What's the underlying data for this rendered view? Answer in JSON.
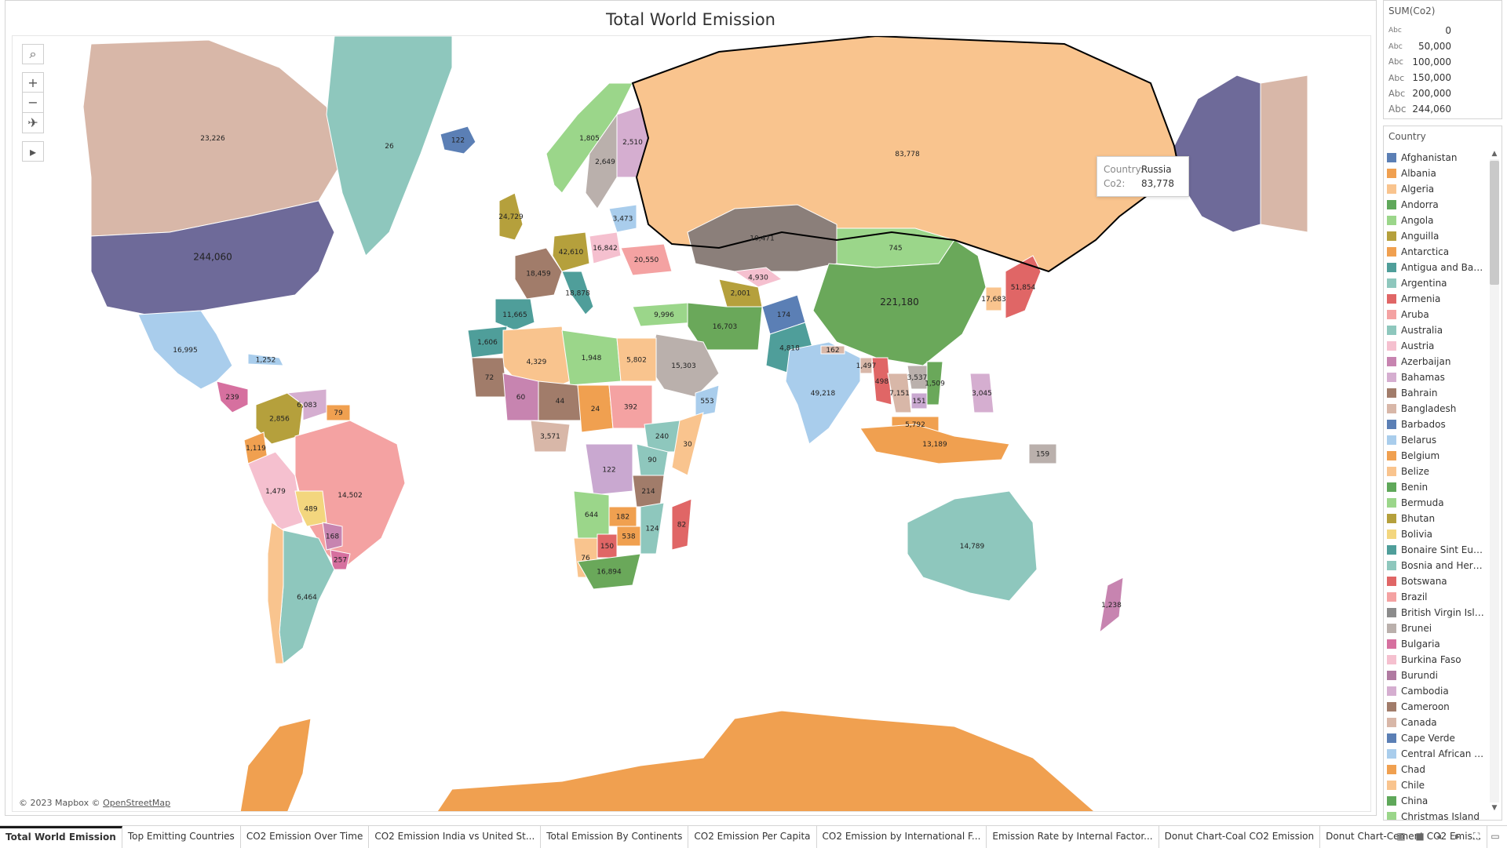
{
  "title": "Total World Emission",
  "attribution": {
    "mapbox": "© 2023 Mapbox ©",
    "osm": "OpenStreetMap"
  },
  "map_tools": {
    "search": "⌕",
    "zoom_in": "+",
    "zoom_out": "−",
    "pin": "✈",
    "play": "▸"
  },
  "tooltip": {
    "country_label": "Country:",
    "country_value": "Russia",
    "co2_label": "Co2:",
    "co2_value": "83,778"
  },
  "size_legend": {
    "title": "SUM(Co2)",
    "items": [
      {
        "abc": "Abc",
        "value": "0"
      },
      {
        "abc": "Abc",
        "value": "50,000"
      },
      {
        "abc": "Abc",
        "value": "100,000"
      },
      {
        "abc": "Abc",
        "value": "150,000"
      },
      {
        "abc": "Abc",
        "value": "200,000"
      },
      {
        "abc": "Abc",
        "value": "244,060"
      }
    ]
  },
  "color_legend": {
    "title": "Country",
    "items": [
      {
        "name": "Afghanistan",
        "color": "#5b7fb5"
      },
      {
        "name": "Albania",
        "color": "#f0a050"
      },
      {
        "name": "Algeria",
        "color": "#f9c48e"
      },
      {
        "name": "Andorra",
        "color": "#5fa85a"
      },
      {
        "name": "Angola",
        "color": "#9bd68a"
      },
      {
        "name": "Anguilla",
        "color": "#b5a03c"
      },
      {
        "name": "Antarctica",
        "color": "#f0a050"
      },
      {
        "name": "Antigua and Barb..",
        "color": "#4f9e9a"
      },
      {
        "name": "Argentina",
        "color": "#8ec7bd"
      },
      {
        "name": "Armenia",
        "color": "#e06666"
      },
      {
        "name": "Aruba",
        "color": "#f4a2a2"
      },
      {
        "name": "Australia",
        "color": "#8ec7bd"
      },
      {
        "name": "Austria",
        "color": "#f5c0cf"
      },
      {
        "name": "Azerbaijan",
        "color": "#c784b0"
      },
      {
        "name": "Bahamas",
        "color": "#d5aed0"
      },
      {
        "name": "Bahrain",
        "color": "#a17c6a"
      },
      {
        "name": "Bangladesh",
        "color": "#d8b7a8"
      },
      {
        "name": "Barbados",
        "color": "#5b7fb5"
      },
      {
        "name": "Belarus",
        "color": "#a9cdec"
      },
      {
        "name": "Belgium",
        "color": "#f0a050"
      },
      {
        "name": "Belize",
        "color": "#f9c48e"
      },
      {
        "name": "Benin",
        "color": "#5fa85a"
      },
      {
        "name": "Bermuda",
        "color": "#9bd68a"
      },
      {
        "name": "Bhutan",
        "color": "#b5a03c"
      },
      {
        "name": "Bolivia",
        "color": "#f3d67e"
      },
      {
        "name": "Bonaire Sint Eust..",
        "color": "#4f9e9a"
      },
      {
        "name": "Bosnia and Herze..",
        "color": "#8ec7bd"
      },
      {
        "name": "Botswana",
        "color": "#e06666"
      },
      {
        "name": "Brazil",
        "color": "#f4a2a2"
      },
      {
        "name": "British Virgin Isla..",
        "color": "#8b8b8b"
      },
      {
        "name": "Brunei",
        "color": "#bab0ac"
      },
      {
        "name": "Bulgaria",
        "color": "#d6709f"
      },
      {
        "name": "Burkina Faso",
        "color": "#f5c0cf"
      },
      {
        "name": "Burundi",
        "color": "#b07aa1"
      },
      {
        "name": "Cambodia",
        "color": "#d5aed0"
      },
      {
        "name": "Cameroon",
        "color": "#a17c6a"
      },
      {
        "name": "Canada",
        "color": "#d8b7a8"
      },
      {
        "name": "Cape Verde",
        "color": "#5b7fb5"
      },
      {
        "name": "Central African R..",
        "color": "#a9cdec"
      },
      {
        "name": "Chad",
        "color": "#f0a050"
      },
      {
        "name": "Chile",
        "color": "#f9c48e"
      },
      {
        "name": "China",
        "color": "#5fa85a"
      },
      {
        "name": "Christmas Island",
        "color": "#9bd68a"
      }
    ]
  },
  "regions": {
    "canada": {
      "label": "23,226",
      "color": "#d8b7a8"
    },
    "usa": {
      "label": "244,060",
      "color": "#6e6a99"
    },
    "alaska": {
      "color": "#6e6a99"
    },
    "greenland": {
      "label": "26",
      "color": "#8ec7bd"
    },
    "iceland": {
      "label": "122",
      "color": "#5b7fb5"
    },
    "mexico": {
      "label": "16,995",
      "color": "#a9cdec"
    },
    "russia": {
      "label": "83,778",
      "color": "#f9c48e"
    },
    "china": {
      "label": "221,180",
      "color": "#6aa85a"
    },
    "mongolia": {
      "label": "745",
      "color": "#9bd68a"
    },
    "kazakhstan": {
      "label": "10,471",
      "color": "#8b7f7a"
    },
    "india": {
      "label": "49,218",
      "color": "#a9cdec"
    },
    "brazil": {
      "label": "14,502",
      "color": "#f4a2a2"
    },
    "argentina": {
      "label": "6,464",
      "color": "#8ec7bd"
    },
    "chile": {
      "color": "#f9c48e"
    },
    "peru": {
      "label": "1,479",
      "color": "#f5c0cf"
    },
    "colombia": {
      "label": "2,856",
      "color": "#b5a03c"
    },
    "venezuela": {
      "label": "6,083",
      "color": "#d5aed0"
    },
    "bolivia": {
      "label": "489",
      "color": "#f3d67e"
    },
    "australia": {
      "label": "14,789",
      "color": "#8ec7bd"
    },
    "antarctica": {
      "color": "#f0a050"
    },
    "greenland_south": {
      "color": "#8ec7bd"
    },
    "algeria": {
      "label": "4,329",
      "color": "#f9c48e"
    },
    "libya": {
      "label": "1,948",
      "color": "#9bd68a"
    },
    "egypt": {
      "label": "5,802",
      "color": "#f9c48e"
    },
    "sudan": {
      "label": "392",
      "color": "#f4a2a2"
    },
    "chad": {
      "label": "24",
      "color": "#f0a050"
    },
    "niger": {
      "label": "44",
      "color": "#a17c6a"
    },
    "mali": {
      "label": "60",
      "color": "#c784b0"
    },
    "drc": {
      "label": "122",
      "color": "#c9a8d0"
    },
    "angola": {
      "label": "644",
      "color": "#9bd68a"
    },
    "south_africa": {
      "label": "16,894",
      "color": "#6aa85a"
    },
    "madagascar": {
      "label": "82",
      "color": "#e06666"
    },
    "saudi": {
      "label": "15,303",
      "color": "#bab0ac"
    },
    "iran": {
      "label": "16,703",
      "color": "#6aa85a"
    },
    "turkey": {
      "label": "9,996",
      "color": "#9bd68a"
    },
    "france": {
      "label": "18,459",
      "color": "#a17c6a"
    },
    "spain": {
      "label": "11,665",
      "color": "#4f9e9a"
    },
    "germany": {
      "label": "42,610",
      "color": "#b5a03c"
    },
    "uk": {
      "label": "24,729",
      "color": "#b5a03c"
    },
    "poland": {
      "label": "16,842",
      "color": "#f5c0cf"
    },
    "ukraine": {
      "label": "20,550",
      "color": "#f4a2a2"
    },
    "sweden": {
      "label": "2,649",
      "color": "#bab0ac"
    },
    "finland": {
      "label": "2,510",
      "color": "#d5aed0"
    },
    "norway": {
      "label": "1,805",
      "color": "#9bd68a"
    },
    "japan": {
      "label": "51,854",
      "color": "#e06666"
    },
    "korea": {
      "label": "17,683",
      "color": "#f9c48e"
    },
    "indonesia": {
      "label": "13,189",
      "color": "#f0a050"
    },
    "thailand": {
      "label": "7,151",
      "color": "#d8b7a8"
    },
    "myanmar": {
      "label": "498",
      "color": "#e06666"
    },
    "pakistan": {
      "label": "4,818",
      "color": "#4f9e9a"
    },
    "afghanistan": {
      "label": "174",
      "color": "#5b7fb5"
    },
    "new_zealand": {
      "label": "1,238",
      "color": "#c784b0"
    },
    "philippines": {
      "label": "3,045",
      "color": "#d5aed0"
    },
    "png": {
      "label": "159",
      "color": "#bab0ac"
    },
    "malaysia": {
      "label": "5,792",
      "color": "#f0a050"
    },
    "ethiopia": {
      "label": "240",
      "color": "#8ec7bd"
    },
    "kenya": {
      "label": "90",
      "color": "#8ec7bd"
    },
    "tanzania": {
      "label": "214",
      "color": "#a17c6a"
    },
    "nigeria": {
      "label": "3,571",
      "color": "#d8b7a8"
    },
    "namibia": {
      "label": "76",
      "color": "#f9c48e"
    },
    "botswana": {
      "label": "150",
      "color": "#e06666"
    },
    "mozambique": {
      "label": "124",
      "color": "#8ec7bd"
    },
    "zimbabwe": {
      "label": "538",
      "color": "#f0a050"
    },
    "zambia": {
      "label": "182",
      "color": "#f0a050"
    },
    "somalia": {
      "label": "30",
      "color": "#f9c48e"
    },
    "oman": {
      "label": "553",
      "color": "#a9cdec"
    },
    "uzbek": {
      "label": "4,930",
      "color": "#f5c0cf"
    },
    "turkmen": {
      "label": "2,001",
      "color": "#b5a03c"
    },
    "vietnam": {
      "label": "1,509",
      "color": "#6aa85a"
    },
    "cambodia_reg": {
      "label": "151",
      "color": "#c9a8d0"
    },
    "laos": {
      "label": "3,537",
      "color": "#bab0ac"
    },
    "bangladesh": {
      "label": "1,497",
      "color": "#d8b7a8"
    },
    "nepal": {
      "label": "162",
      "color": "#d8b7a8"
    },
    "morocco": {
      "label": "1,606",
      "color": "#4f9e9a"
    },
    "mauritania": {
      "label": "72",
      "color": "#a17c6a"
    },
    "uruguay": {
      "label": "257",
      "color": "#d6709f"
    },
    "paraguay": {
      "label": "168",
      "color": "#c784b0"
    },
    "ecuador": {
      "label": "1,119",
      "color": "#f0a050"
    },
    "guyana": {
      "label": "79",
      "color": "#f0a050"
    },
    "cuba": {
      "label": "1,252",
      "color": "#a9cdec"
    },
    "central_am": {
      "label": "239",
      "color": "#d6709f"
    },
    "italy": {
      "label": "18,878",
      "color": "#4f9e9a"
    },
    "baltics": {
      "label": "3,473",
      "color": "#a9cdec"
    }
  }
}
